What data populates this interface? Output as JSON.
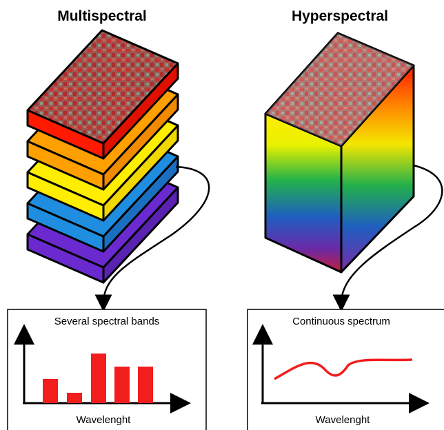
{
  "multispectral": {
    "title": "Multispectral",
    "panel_title": "Several spectral bands",
    "axis_label": "Wavelenght"
  },
  "hyperspectral": {
    "title": "Hyperspectral",
    "panel_title": "Continuous spectrum",
    "axis_label": "Wavelenght"
  }
}
